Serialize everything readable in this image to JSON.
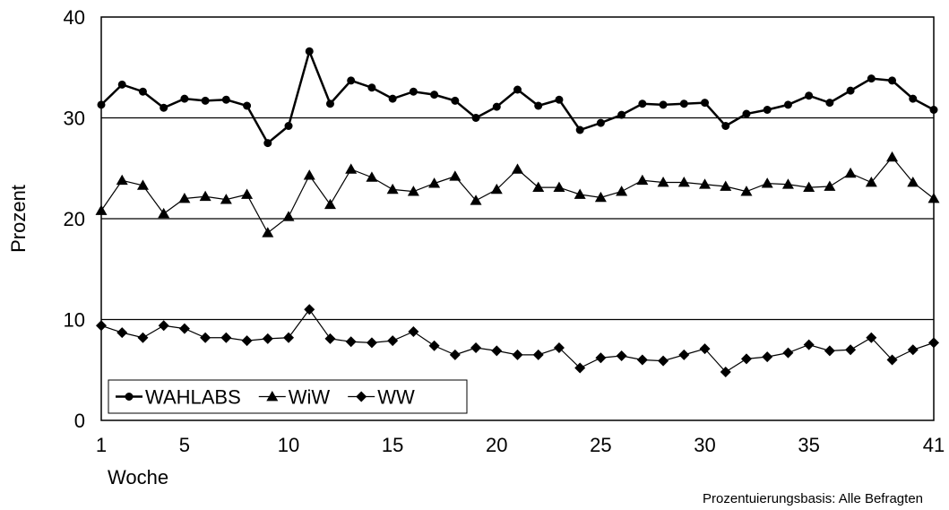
{
  "chart_data": {
    "type": "line",
    "title": "",
    "xlabel": "Woche",
    "ylabel": "Prozent",
    "note": "Prozentuierungsbasis: Alle Befragten",
    "xlim": [
      1,
      41
    ],
    "ylim": [
      0,
      40
    ],
    "x_ticks": [
      1,
      5,
      10,
      15,
      20,
      25,
      30,
      35,
      41
    ],
    "y_ticks": [
      0,
      10,
      20,
      30,
      40
    ],
    "grid": "horizontal at 10, 20, 30",
    "legend_position": "bottom-left",
    "x": [
      1,
      2,
      3,
      4,
      5,
      6,
      7,
      8,
      9,
      10,
      11,
      12,
      13,
      14,
      15,
      16,
      17,
      18,
      19,
      20,
      21,
      22,
      23,
      24,
      25,
      26,
      27,
      28,
      29,
      30,
      31,
      32,
      33,
      34,
      35,
      36,
      37,
      38,
      39,
      40,
      41
    ],
    "series": [
      {
        "name": "WAHLABS",
        "marker": "circle",
        "line": "thick",
        "values": [
          31.3,
          33.3,
          32.6,
          31.0,
          31.9,
          31.7,
          31.8,
          31.2,
          27.5,
          29.2,
          36.6,
          31.4,
          33.7,
          33.0,
          31.9,
          32.6,
          32.3,
          31.7,
          30.0,
          31.1,
          32.8,
          31.2,
          31.8,
          28.8,
          29.5,
          30.3,
          31.4,
          31.3,
          31.4,
          31.5,
          29.2,
          30.4,
          30.8,
          31.3,
          32.2,
          31.5,
          32.7,
          33.9,
          33.7,
          31.9,
          30.8
        ]
      },
      {
        "name": "WiW",
        "marker": "triangle",
        "line": "thin",
        "values": [
          20.8,
          23.8,
          23.3,
          20.5,
          22.0,
          22.2,
          21.9,
          22.4,
          18.6,
          20.2,
          24.3,
          21.4,
          24.9,
          24.1,
          22.9,
          22.7,
          23.5,
          24.2,
          21.8,
          22.9,
          24.9,
          23.1,
          23.1,
          22.4,
          22.1,
          22.7,
          23.8,
          23.6,
          23.6,
          23.4,
          23.2,
          22.7,
          23.5,
          23.4,
          23.1,
          23.2,
          24.5,
          23.6,
          26.1,
          23.6,
          22.0
        ]
      },
      {
        "name": "WW",
        "marker": "diamond",
        "line": "thin",
        "values": [
          9.4,
          8.7,
          8.2,
          9.4,
          9.1,
          8.2,
          8.2,
          7.9,
          8.1,
          8.2,
          11.0,
          8.1,
          7.8,
          7.7,
          7.9,
          8.8,
          7.4,
          6.5,
          7.2,
          6.9,
          6.5,
          6.5,
          7.2,
          5.2,
          6.2,
          6.4,
          6.0,
          5.9,
          6.5,
          7.1,
          4.8,
          6.1,
          6.3,
          6.7,
          7.5,
          6.9,
          7.0,
          8.2,
          6.0,
          7.0,
          7.7
        ]
      }
    ]
  }
}
